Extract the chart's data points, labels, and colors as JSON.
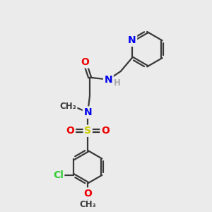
{
  "bg_color": "#ebebeb",
  "bond_color": "#3a3a3a",
  "bond_width": 1.6,
  "atom_colors": {
    "N": "#0000ee",
    "O": "#ee0000",
    "S": "#cccc00",
    "Cl": "#33cc33",
    "C": "#3a3a3a",
    "H": "#aaaaaa"
  },
  "font_size_atom": 10,
  "font_size_small": 8.5
}
